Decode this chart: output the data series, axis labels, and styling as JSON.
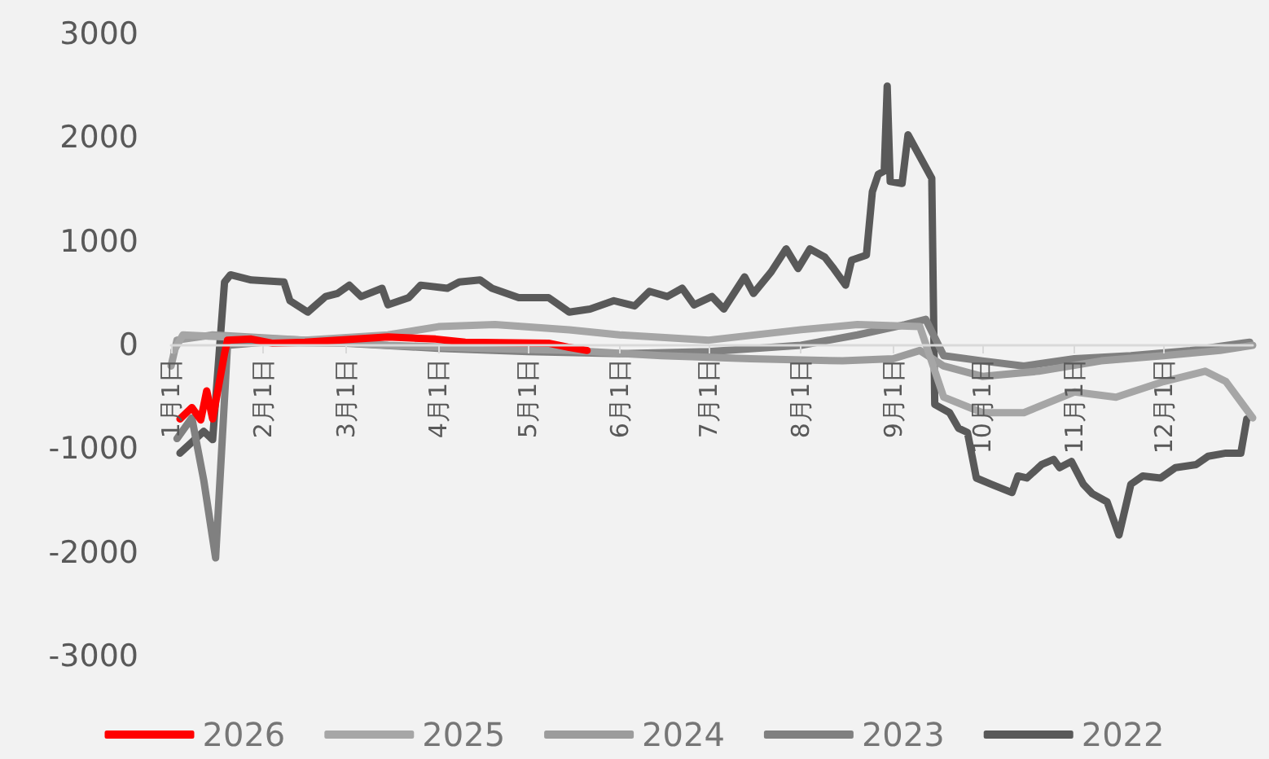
{
  "chart_data": {
    "type": "line",
    "ylim": [
      -3000,
      3000
    ],
    "yticks": [
      -3000,
      -2000,
      -1000,
      0,
      1000,
      2000,
      3000
    ],
    "xlim": [
      "--01-01",
      "--12-31"
    ],
    "xticks": [
      {
        "value": "--01-01",
        "label": "1月1日"
      },
      {
        "value": "--02-01",
        "label": "2月1日"
      },
      {
        "value": "--03-01",
        "label": "3月1日"
      },
      {
        "value": "--04-01",
        "label": "4月1日"
      },
      {
        "value": "--05-01",
        "label": "5月1日"
      },
      {
        "value": "--06-01",
        "label": "6月1日"
      },
      {
        "value": "--07-01",
        "label": "7月1日"
      },
      {
        "value": "--08-01",
        "label": "8月1日"
      },
      {
        "value": "--09-01",
        "label": "9月1日"
      },
      {
        "value": "--10-01",
        "label": "10月1日"
      },
      {
        "value": "--11-01",
        "label": "11月1日"
      },
      {
        "value": "--12-01",
        "label": "12月1日"
      }
    ],
    "grid": false,
    "legend": "bottom",
    "marker": "none",
    "line_style": "solid",
    "series": [
      {
        "name": "2026",
        "color": "#ff0000",
        "x": [
          "--01-04",
          "--01-08",
          "--01-11",
          "--01-13",
          "--01-15",
          "--01-19",
          "--01-20",
          "--01-28",
          "--02-04",
          "--02-15",
          "--03-15",
          "--03-31",
          "--04-10",
          "--05-08",
          "--05-15",
          "--05-21"
        ],
        "values": [
          -710,
          -600,
          -720,
          -440,
          -710,
          -80,
          50,
          60,
          20,
          30,
          80,
          60,
          30,
          20,
          -20,
          -50
        ]
      },
      {
        "name": "2025",
        "color": "#a6a6a6",
        "x": [
          "--01-02",
          "--01-05",
          "--01-20",
          "--02-15",
          "--03-15",
          "--04-01",
          "--04-20",
          "--05-15",
          "--06-01",
          "--07-01",
          "--08-01",
          "--08-20",
          "--09-10",
          "--09-18",
          "--10-01",
          "--10-15",
          "--11-01",
          "--11-15",
          "--12-01",
          "--12-15",
          "--12-22",
          "--12-31"
        ],
        "values": [
          -50,
          100,
          80,
          50,
          100,
          180,
          200,
          150,
          100,
          50,
          150,
          200,
          180,
          -500,
          -650,
          -650,
          -450,
          -500,
          -350,
          -250,
          -350,
          -700
        ]
      },
      {
        "name": "2024",
        "color": "#9c9c9c",
        "x": [
          "--01-01",
          "--01-03",
          "--01-15",
          "--02-15",
          "--03-15",
          "--04-15",
          "--05-15",
          "--06-15",
          "--07-15",
          "--08-15",
          "--09-01",
          "--09-10",
          "--09-18",
          "--10-01",
          "--10-20",
          "--11-10",
          "--12-01",
          "--12-20",
          "--12-31"
        ],
        "values": [
          -200,
          50,
          100,
          50,
          0,
          -30,
          -50,
          -100,
          -130,
          -150,
          -130,
          -50,
          -200,
          -300,
          -250,
          -150,
          -100,
          -50,
          0
        ]
      },
      {
        "name": "2023",
        "color": "#808080",
        "x": [
          "--01-03",
          "--01-08",
          "--01-12",
          "--01-16",
          "--01-20",
          "--02-01",
          "--03-01",
          "--04-01",
          "--05-01",
          "--06-01",
          "--07-01",
          "--08-01",
          "--08-20",
          "--09-05",
          "--09-12",
          "--09-18",
          "--10-01",
          "--10-15",
          "--11-01",
          "--11-20",
          "--12-10",
          "--12-30"
        ],
        "values": [
          -900,
          -700,
          -1300,
          -2050,
          0,
          30,
          20,
          -30,
          -60,
          -80,
          -60,
          0,
          100,
          200,
          250,
          -100,
          -150,
          -200,
          -130,
          -100,
          -50,
          30
        ]
      },
      {
        "name": "2022",
        "color": "#595959",
        "x": [
          "--01-04",
          "--01-12",
          "--01-15",
          "--01-19",
          "--01-21",
          "--01-28",
          "--02-08",
          "--02-10",
          "--02-16",
          "--02-22",
          "--02-26",
          "--03-02",
          "--03-06",
          "--03-13",
          "--03-15",
          "--03-22",
          "--03-26",
          "--04-04",
          "--04-08",
          "--04-15",
          "--04-19",
          "--04-28",
          "--05-08",
          "--05-15",
          "--05-22",
          "--05-30",
          "--06-06",
          "--06-11",
          "--06-17",
          "--06-22",
          "--06-26",
          "--07-02",
          "--07-06",
          "--07-13",
          "--07-16",
          "--07-22",
          "--07-27",
          "--07-31",
          "--08-04",
          "--08-09",
          "--08-12",
          "--08-16",
          "--08-18",
          "--08-23",
          "--08-25",
          "--08-27",
          "--08-29",
          "--08-30",
          "--08-31",
          "--09-04",
          "--09-06",
          "--09-14",
          "--09-15",
          "--09-20",
          "--09-23",
          "--09-26",
          "--09-29",
          "--10-04",
          "--10-11",
          "--10-13",
          "--10-16",
          "--10-21",
          "--10-25",
          "--10-27",
          "--10-31",
          "--11-04",
          "--11-07",
          "--11-12",
          "--11-16",
          "--11-20",
          "--11-24",
          "--11-30",
          "--12-05",
          "--12-12",
          "--12-16",
          "--12-22",
          "--12-27",
          "--12-29"
        ],
        "values": [
          -1040,
          -830,
          -910,
          610,
          680,
          630,
          610,
          430,
          320,
          470,
          500,
          580,
          470,
          550,
          390,
          460,
          580,
          550,
          610,
          630,
          550,
          460,
          460,
          320,
          350,
          430,
          380,
          520,
          470,
          550,
          390,
          470,
          350,
          660,
          500,
          710,
          930,
          740,
          930,
          850,
          740,
          580,
          820,
          870,
          1480,
          1650,
          1680,
          2500,
          1580,
          1560,
          2030,
          1610,
          -570,
          -650,
          -800,
          -840,
          -1280,
          -1340,
          -1420,
          -1260,
          -1280,
          -1150,
          -1100,
          -1180,
          -1120,
          -1340,
          -1430,
          -1510,
          -1830,
          -1340,
          -1260,
          -1280,
          -1180,
          -1150,
          -1070,
          -1040,
          -1040,
          -710
        ]
      }
    ]
  }
}
